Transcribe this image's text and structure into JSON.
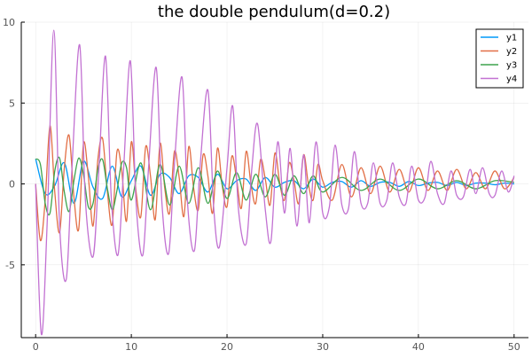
{
  "chart_data": {
    "type": "line",
    "title": "the double pendulum(d=0.2)",
    "xlabel": "",
    "ylabel": "",
    "xlim": [
      -1.5,
      51.5
    ],
    "ylim": [
      -9.5,
      10
    ],
    "x_ticks": [
      0,
      10,
      20,
      30,
      40,
      50
    ],
    "y_ticks": [
      -5,
      0,
      5,
      10
    ],
    "grid": true,
    "legend_position": "top-right",
    "series": [
      {
        "name": "y1",
        "color": "#009af9",
        "x": [
          0,
          1,
          2,
          3,
          4,
          5,
          6,
          7,
          8,
          9,
          10,
          11,
          12,
          13,
          14,
          15,
          16,
          17,
          18,
          19,
          20,
          21,
          22,
          23,
          24,
          25,
          26,
          27,
          28,
          29,
          30,
          31,
          32,
          33,
          34,
          35,
          36,
          37,
          38,
          39,
          40,
          41,
          42,
          43,
          44,
          45,
          46,
          47,
          48,
          49,
          50
        ],
        "y": [
          1.55,
          -0.6,
          -0.1,
          1.3,
          -1.2,
          1.4,
          -0.2,
          -0.9,
          1.1,
          -0.8,
          0.2,
          1.1,
          -0.7,
          0.6,
          0.4,
          -0.6,
          0.5,
          0.4,
          -0.5,
          0.6,
          -0.3,
          0.2,
          0.3,
          -0.4,
          0.4,
          -0.2,
          0.1,
          0.2,
          -0.3,
          0.3,
          -0.2,
          0.1,
          0.15,
          -0.2,
          0.2,
          -0.15,
          0.1,
          0.1,
          -0.15,
          0.15,
          -0.1,
          0.05,
          0.1,
          -0.1,
          0.1,
          -0.1,
          0.05,
          0.05,
          -0.05,
          0.05,
          0.0
        ]
      },
      {
        "name": "y2",
        "color": "#e26f46",
        "x": [
          0,
          0.5,
          1,
          1.5,
          2,
          2.5,
          3,
          3.5,
          4,
          4.5,
          5,
          5.5,
          6,
          6.5,
          7,
          7.5,
          8,
          8.5,
          9,
          9.5,
          10,
          10.5,
          11,
          11.5,
          12,
          12.5,
          13,
          13.5,
          14,
          14.5,
          15,
          15.5,
          16,
          16.5,
          17,
          17.5,
          18,
          18.5,
          19,
          19.5,
          20,
          20.5,
          21,
          21.5,
          22,
          22.5,
          23,
          23.5,
          24,
          24.5,
          25,
          25.5,
          26,
          26.5,
          27,
          27.5,
          28,
          28.5,
          29,
          29.5,
          30,
          31,
          32,
          33,
          34,
          35,
          36,
          37,
          38,
          39,
          40,
          41,
          42,
          43,
          44,
          45,
          46,
          47,
          48,
          49,
          50
        ],
        "y": [
          0,
          -3.5,
          -1.0,
          3.6,
          -0.5,
          -3.0,
          1.0,
          3.0,
          -0.8,
          -2.8,
          2.5,
          0.5,
          -2.6,
          1.5,
          2.8,
          -0.5,
          -2.5,
          2.0,
          0.8,
          -2.3,
          2.6,
          -0.5,
          -2.0,
          2.3,
          0.5,
          -2.2,
          2.5,
          -0.3,
          -1.8,
          2.0,
          0.4,
          -2.0,
          2.3,
          -0.2,
          -1.6,
          1.8,
          0.5,
          -1.8,
          2.2,
          -0.1,
          -1.4,
          1.7,
          0.3,
          -1.5,
          2.0,
          0.0,
          -1.2,
          1.5,
          0.3,
          -1.3,
          1.9,
          0.1,
          -1.0,
          1.3,
          0.2,
          -1.2,
          1.8,
          0.0,
          -1.0,
          1.2,
          0.2,
          -1.0,
          1.2,
          -0.8,
          1.0,
          -0.6,
          1.1,
          -0.5,
          0.9,
          -0.5,
          1.0,
          -0.4,
          0.8,
          -0.4,
          0.9,
          -0.3,
          0.7,
          -0.3,
          0.8,
          -0.3,
          0.4
        ]
      },
      {
        "name": "y3",
        "color": "#3da44d",
        "x": [
          0,
          0.5,
          1,
          1.5,
          2,
          2.5,
          3,
          3.5,
          4,
          4.5,
          5,
          5.5,
          6,
          6.5,
          7,
          7.5,
          8,
          8.5,
          9,
          9.5,
          10,
          11,
          12,
          13,
          14,
          15,
          16,
          17,
          18,
          19,
          20,
          21,
          22,
          23,
          24,
          25,
          26,
          27,
          28,
          29,
          30,
          32,
          34,
          36,
          38,
          40,
          42,
          44,
          46,
          48,
          50
        ],
        "y": [
          1.55,
          1.2,
          -1.2,
          -1.8,
          0.8,
          1.6,
          -0.5,
          -1.7,
          0.2,
          1.6,
          0.6,
          -1.4,
          -1.2,
          0.9,
          1.5,
          -0.3,
          -1.6,
          -0.4,
          1.3,
          1.0,
          -1.0,
          1.3,
          -1.6,
          1.2,
          -1.3,
          1.1,
          -1.2,
          1.0,
          -1.2,
          0.8,
          -0.9,
          0.7,
          -1.0,
          0.6,
          -0.8,
          0.6,
          -0.7,
          0.5,
          -0.6,
          0.5,
          -0.5,
          0.4,
          -0.4,
          0.3,
          -0.4,
          0.3,
          -0.3,
          0.2,
          -0.3,
          0.2,
          0.1
        ]
      },
      {
        "name": "y4",
        "color": "#c271d2",
        "x": [
          0,
          0.6,
          1.2,
          1.9,
          2.5,
          3.2,
          3.8,
          4.6,
          5.2,
          6.0,
          6.6,
          7.3,
          7.9,
          8.6,
          9.2,
          9.9,
          10.5,
          11.2,
          11.8,
          12.6,
          13.2,
          13.9,
          14.5,
          15.3,
          15.9,
          16.6,
          17.2,
          18.0,
          18.6,
          19.2,
          20.0,
          20.6,
          21.2,
          22.0,
          22.6,
          23.2,
          24.0,
          24.6,
          25.3,
          26.0,
          26.6,
          27.3,
          28.0,
          28.6,
          29.3,
          30.0,
          30.7,
          31.3,
          32.0,
          32.7,
          33.3,
          34.0,
          34.7,
          35.3,
          36.0,
          36.7,
          37.3,
          38.0,
          38.7,
          39.3,
          40.0,
          40.7,
          41.3,
          42.0,
          42.7,
          43.4,
          44.0,
          44.7,
          45.4,
          46.0,
          46.7,
          47.4,
          48.0,
          48.7,
          49.4,
          50.0
        ],
        "y": [
          0,
          -9.3,
          -2.5,
          9.5,
          -2.5,
          -5.9,
          1.0,
          8.6,
          -1.0,
          -4.5,
          0.8,
          7.9,
          -0.8,
          -4.4,
          1.0,
          7.6,
          -1.2,
          -4.4,
          1.0,
          7.2,
          -1.2,
          -4.3,
          1.2,
          6.6,
          -1.4,
          -4.1,
          1.2,
          5.8,
          -1.4,
          -3.9,
          1.0,
          4.8,
          -1.6,
          -3.7,
          1.0,
          3.7,
          -1.6,
          -3.5,
          2.6,
          -1.8,
          2.2,
          -2.6,
          1.8,
          -2.4,
          2.6,
          -1.8,
          -1.4,
          2.4,
          -1.3,
          -1.5,
          2.0,
          -1.2,
          -1.2,
          1.3,
          -1.2,
          -1.0,
          1.3,
          -0.8,
          -1.2,
          1.1,
          -1.0,
          -0.8,
          1.4,
          -0.6,
          -1.2,
          0.8,
          -0.7,
          -0.8,
          0.9,
          -0.6,
          1.0,
          -0.6,
          -0.7,
          0.8,
          -0.5,
          0.5
        ]
      }
    ]
  }
}
